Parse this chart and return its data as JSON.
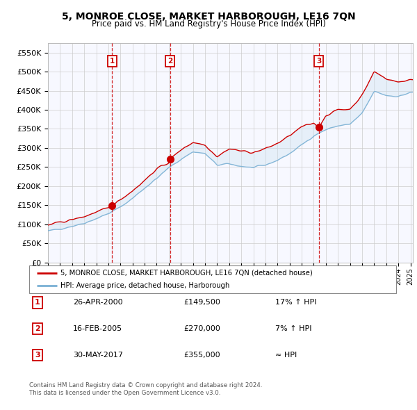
{
  "title": "5, MONROE CLOSE, MARKET HARBOROUGH, LE16 7QN",
  "subtitle": "Price paid vs. HM Land Registry's House Price Index (HPI)",
  "ylabel_ticks": [
    "£0",
    "£50K",
    "£100K",
    "£150K",
    "£200K",
    "£250K",
    "£300K",
    "£350K",
    "£400K",
    "£450K",
    "£500K",
    "£550K"
  ],
  "ytick_values": [
    0,
    50000,
    100000,
    150000,
    200000,
    250000,
    300000,
    350000,
    400000,
    450000,
    500000,
    550000
  ],
  "ylim": [
    0,
    575000
  ],
  "xlim_start": 1995.0,
  "xlim_end": 2025.2,
  "purchase_dates": [
    2000.32,
    2005.12,
    2017.42
  ],
  "purchase_prices": [
    149500,
    270000,
    355000
  ],
  "purchase_labels": [
    "1",
    "2",
    "3"
  ],
  "legend_line1": "5, MONROE CLOSE, MARKET HARBOROUGH, LE16 7QN (detached house)",
  "legend_line2": "HPI: Average price, detached house, Harborough",
  "transactions": [
    [
      "1",
      "26-APR-2000",
      "£149,500",
      "17% ↑ HPI"
    ],
    [
      "2",
      "16-FEB-2005",
      "£270,000",
      "7% ↑ HPI"
    ],
    [
      "3",
      "30-MAY-2017",
      "£355,000",
      "≈ HPI"
    ]
  ],
  "footer1": "Contains HM Land Registry data © Crown copyright and database right 2024.",
  "footer2": "This data is licensed under the Open Government Licence v3.0.",
  "red_color": "#cc0000",
  "blue_color": "#7ab0d4",
  "fill_color": "#c8dff0",
  "grid_color": "#cccccc",
  "chart_bg": "#f7f8ff"
}
